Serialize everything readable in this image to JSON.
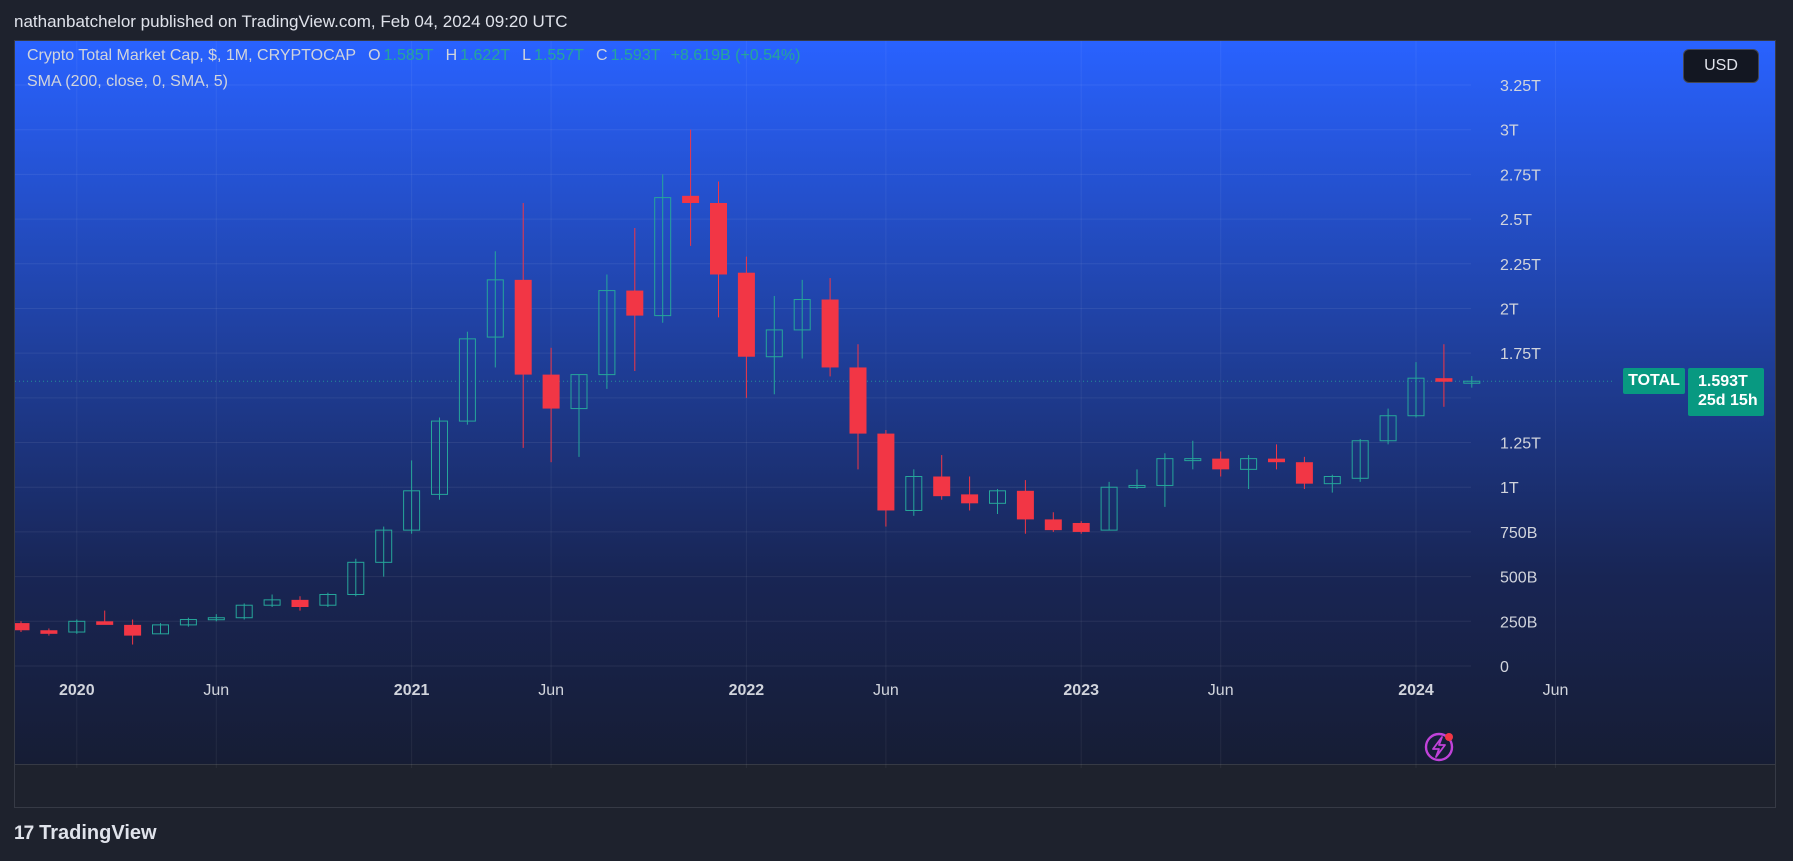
{
  "caption": "nathanbatchelor published on TradingView.com, Feb 04, 2024 09:20 UTC",
  "legend": {
    "symbol": "Crypto Total Market Cap, $, 1M, CRYPTOCAP",
    "o_label": "O",
    "o_value": "1.585T",
    "h_label": "H",
    "h_value": "1.622T",
    "l_label": "L",
    "l_value": "1.557T",
    "c_label": "C",
    "c_value": "1.593T",
    "change": "+8.619B (+0.54%)",
    "indicator": "SMA (200, close, 0, SMA, 5)"
  },
  "currency_button": "USD",
  "last_price": {
    "symbol_label": "TOTAL",
    "value": "1.593T",
    "countdown": "25d 15h"
  },
  "brand": {
    "logo_mark": "17",
    "name": "TradingView"
  },
  "colors": {
    "up": "#26a69a",
    "down": "#f23645",
    "tag": "#089981",
    "axis_text": "#d1d4dc"
  },
  "icons": {
    "alert": "lightning-bolt-icon"
  },
  "chart_data": {
    "type": "candlestick",
    "interval": "1M",
    "ylim": [
      0,
      3.3
    ],
    "y_ticks": [
      {
        "value": 0,
        "label": "0"
      },
      {
        "value": 0.25,
        "label": "250B"
      },
      {
        "value": 0.5,
        "label": "500B"
      },
      {
        "value": 0.75,
        "label": "750B"
      },
      {
        "value": 1.0,
        "label": "1T"
      },
      {
        "value": 1.25,
        "label": "1.25T"
      },
      {
        "value": 1.5,
        "label": ""
      },
      {
        "value": 1.75,
        "label": "1.75T"
      },
      {
        "value": 2.0,
        "label": "2T"
      },
      {
        "value": 2.25,
        "label": "2.25T"
      },
      {
        "value": 2.5,
        "label": "2.5T"
      },
      {
        "value": 2.75,
        "label": "2.75T"
      },
      {
        "value": 3.0,
        "label": "3T"
      },
      {
        "value": 3.25,
        "label": "3.25T"
      }
    ],
    "x_ticks": [
      {
        "index": 2,
        "label": "2020",
        "bold": true
      },
      {
        "index": 7,
        "label": "Jun",
        "bold": false
      },
      {
        "index": 14,
        "label": "2021",
        "bold": true
      },
      {
        "index": 19,
        "label": "Jun",
        "bold": false
      },
      {
        "index": 26,
        "label": "2022",
        "bold": true
      },
      {
        "index": 31,
        "label": "Jun",
        "bold": false
      },
      {
        "index": 38,
        "label": "2023",
        "bold": true
      },
      {
        "index": 43,
        "label": "Jun",
        "bold": false
      },
      {
        "index": 50,
        "label": "2024",
        "bold": true
      },
      {
        "index": 55,
        "label": "Jun",
        "bold": false
      }
    ],
    "candles": [
      {
        "o": 0.24,
        "h": 0.25,
        "l": 0.19,
        "c": 0.2
      },
      {
        "o": 0.2,
        "h": 0.21,
        "l": 0.17,
        "c": 0.18
      },
      {
        "o": 0.19,
        "h": 0.26,
        "l": 0.18,
        "c": 0.25
      },
      {
        "o": 0.25,
        "h": 0.31,
        "l": 0.24,
        "c": 0.23
      },
      {
        "o": 0.23,
        "h": 0.26,
        "l": 0.12,
        "c": 0.17
      },
      {
        "o": 0.18,
        "h": 0.24,
        "l": 0.18,
        "c": 0.23
      },
      {
        "o": 0.23,
        "h": 0.27,
        "l": 0.22,
        "c": 0.26
      },
      {
        "o": 0.26,
        "h": 0.29,
        "l": 0.25,
        "c": 0.27
      },
      {
        "o": 0.27,
        "h": 0.35,
        "l": 0.26,
        "c": 0.34
      },
      {
        "o": 0.34,
        "h": 0.4,
        "l": 0.33,
        "c": 0.37
      },
      {
        "o": 0.37,
        "h": 0.39,
        "l": 0.31,
        "c": 0.33
      },
      {
        "o": 0.34,
        "h": 0.41,
        "l": 0.33,
        "c": 0.4
      },
      {
        "o": 0.4,
        "h": 0.6,
        "l": 0.39,
        "c": 0.58
      },
      {
        "o": 0.58,
        "h": 0.78,
        "l": 0.5,
        "c": 0.76
      },
      {
        "o": 0.76,
        "h": 1.15,
        "l": 0.74,
        "c": 0.98
      },
      {
        "o": 0.96,
        "h": 1.39,
        "l": 0.93,
        "c": 1.37
      },
      {
        "o": 1.37,
        "h": 1.87,
        "l": 1.35,
        "c": 1.83
      },
      {
        "o": 1.84,
        "h": 2.32,
        "l": 1.67,
        "c": 2.16
      },
      {
        "o": 2.16,
        "h": 2.59,
        "l": 1.22,
        "c": 1.63
      },
      {
        "o": 1.63,
        "h": 1.78,
        "l": 1.14,
        "c": 1.44
      },
      {
        "o": 1.44,
        "h": 1.63,
        "l": 1.17,
        "c": 1.63
      },
      {
        "o": 1.63,
        "h": 2.19,
        "l": 1.55,
        "c": 2.1
      },
      {
        "o": 2.1,
        "h": 2.45,
        "l": 1.65,
        "c": 1.96
      },
      {
        "o": 1.96,
        "h": 2.75,
        "l": 1.92,
        "c": 2.62
      },
      {
        "o": 2.63,
        "h": 3.0,
        "l": 2.35,
        "c": 2.59
      },
      {
        "o": 2.59,
        "h": 2.71,
        "l": 1.95,
        "c": 2.19
      },
      {
        "o": 2.2,
        "h": 2.29,
        "l": 1.5,
        "c": 1.73
      },
      {
        "o": 1.73,
        "h": 2.07,
        "l": 1.52,
        "c": 1.88
      },
      {
        "o": 1.88,
        "h": 2.16,
        "l": 1.72,
        "c": 2.05
      },
      {
        "o": 2.05,
        "h": 2.17,
        "l": 1.62,
        "c": 1.67
      },
      {
        "o": 1.67,
        "h": 1.8,
        "l": 1.1,
        "c": 1.3
      },
      {
        "o": 1.3,
        "h": 1.32,
        "l": 0.78,
        "c": 0.87
      },
      {
        "o": 0.87,
        "h": 1.1,
        "l": 0.84,
        "c": 1.06
      },
      {
        "o": 1.06,
        "h": 1.18,
        "l": 0.93,
        "c": 0.95
      },
      {
        "o": 0.96,
        "h": 1.06,
        "l": 0.87,
        "c": 0.91
      },
      {
        "o": 0.91,
        "h": 0.99,
        "l": 0.85,
        "c": 0.98
      },
      {
        "o": 0.98,
        "h": 1.04,
        "l": 0.74,
        "c": 0.82
      },
      {
        "o": 0.82,
        "h": 0.86,
        "l": 0.75,
        "c": 0.76
      },
      {
        "o": 0.8,
        "h": 0.81,
        "l": 0.74,
        "c": 0.75
      },
      {
        "o": 0.76,
        "h": 1.03,
        "l": 0.76,
        "c": 1.0
      },
      {
        "o": 1.0,
        "h": 1.1,
        "l": 0.99,
        "c": 1.01
      },
      {
        "o": 1.01,
        "h": 1.19,
        "l": 0.89,
        "c": 1.16
      },
      {
        "o": 1.15,
        "h": 1.26,
        "l": 1.1,
        "c": 1.16
      },
      {
        "o": 1.16,
        "h": 1.2,
        "l": 1.06,
        "c": 1.1
      },
      {
        "o": 1.1,
        "h": 1.18,
        "l": 0.99,
        "c": 1.16
      },
      {
        "o": 1.16,
        "h": 1.24,
        "l": 1.1,
        "c": 1.14
      },
      {
        "o": 1.14,
        "h": 1.17,
        "l": 0.99,
        "c": 1.02
      },
      {
        "o": 1.02,
        "h": 1.07,
        "l": 0.97,
        "c": 1.06
      },
      {
        "o": 1.05,
        "h": 1.27,
        "l": 1.03,
        "c": 1.26
      },
      {
        "o": 1.26,
        "h": 1.44,
        "l": 1.24,
        "c": 1.4
      },
      {
        "o": 1.4,
        "h": 1.7,
        "l": 1.39,
        "c": 1.61
      },
      {
        "o": 1.61,
        "h": 1.8,
        "l": 1.45,
        "c": 1.59
      },
      {
        "o": 1.585,
        "h": 1.622,
        "l": 1.557,
        "c": 1.593
      }
    ],
    "last_close": 1.593,
    "grid": true
  }
}
